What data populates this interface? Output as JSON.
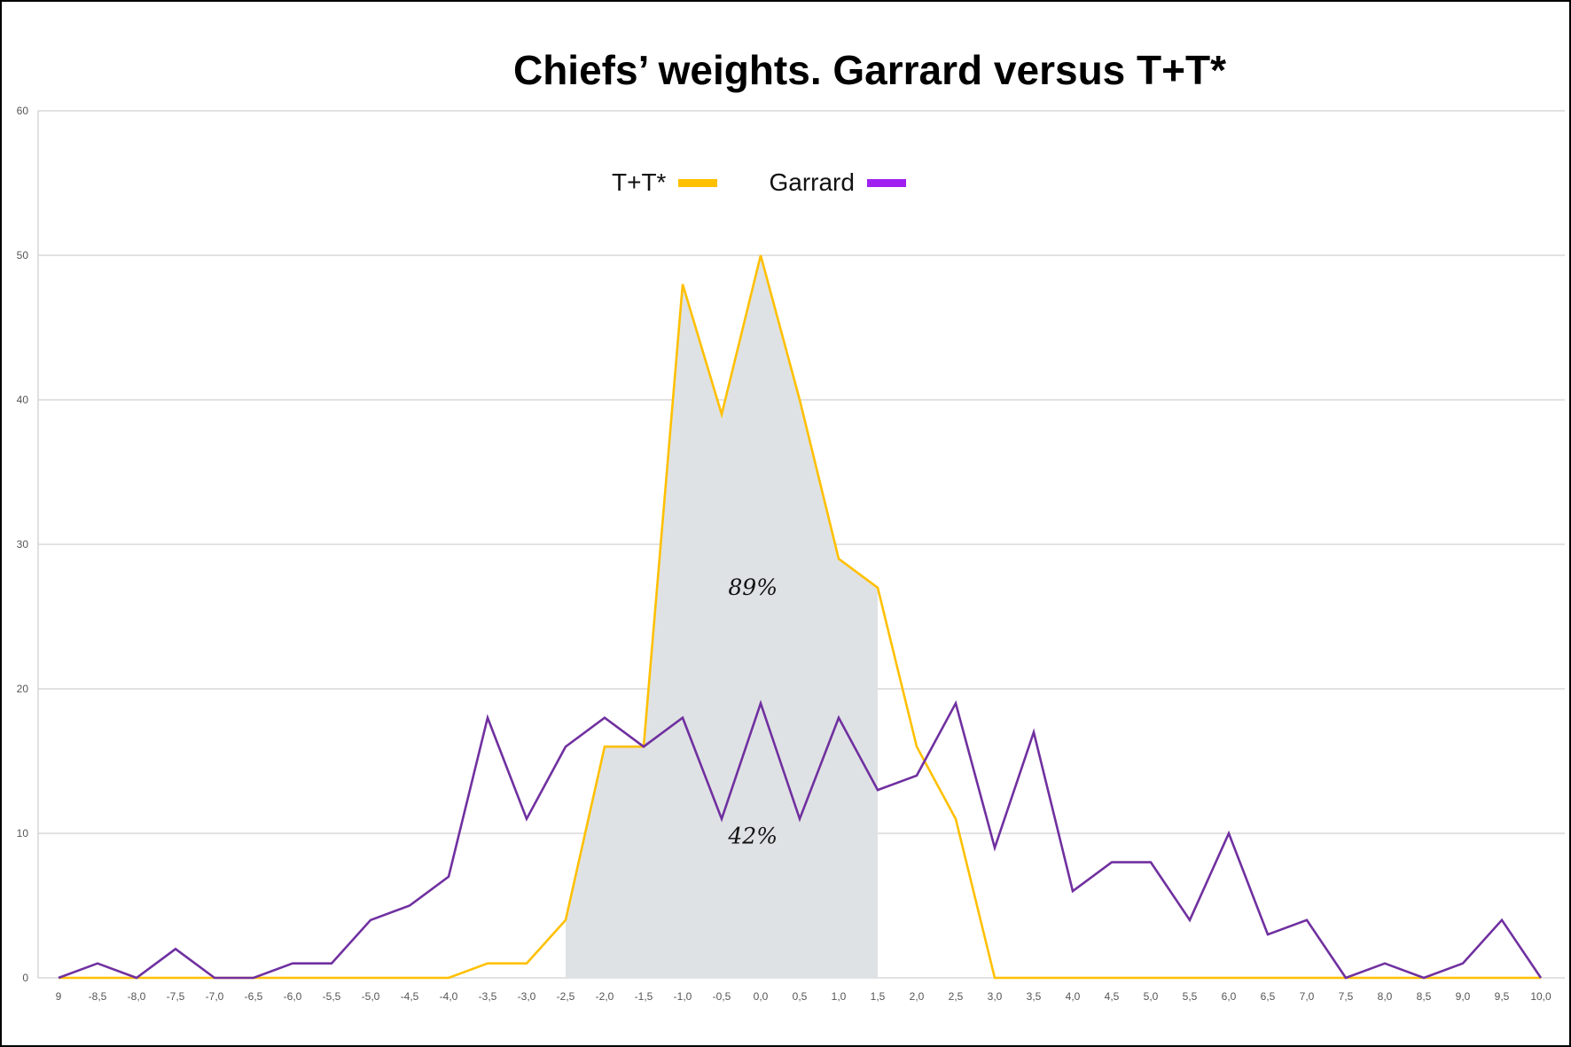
{
  "chart_data": {
    "type": "line",
    "title": "Chiefs’ weights. Garrard versus T+T*",
    "xlabel": "",
    "ylabel": "",
    "ylim": [
      0,
      60
    ],
    "yticks": [
      "0",
      "10",
      "20",
      "30",
      "40",
      "50",
      "60"
    ],
    "categories": [
      "9",
      "-8,5",
      "-8,0",
      "-7,5",
      "-7,0",
      "-6,5",
      "-6,0",
      "-5,5",
      "-5,0",
      "-4,5",
      "-4,0",
      "-3,5",
      "-3,0",
      "-2,5",
      "-2,0",
      "-1,5",
      "-1,0",
      "-0,5",
      "0,0",
      "0,5",
      "1,0",
      "1,5",
      "2,0",
      "2,5",
      "3,0",
      "3,5",
      "4,0",
      "4,5",
      "5,0",
      "5,5",
      "6,0",
      "6,5",
      "7,0",
      "7,5",
      "8,0",
      "8,5",
      "9,0",
      "9,5",
      "10,0"
    ],
    "grid": true,
    "legend_position": "top-center",
    "series": [
      {
        "name": "T+T*",
        "color": "#FFC000",
        "values": [
          0,
          0,
          0,
          0,
          0,
          0,
          0,
          0,
          0,
          0,
          0,
          1,
          1,
          4,
          16,
          16,
          48,
          39,
          50,
          40,
          29,
          27,
          16,
          11,
          0,
          0,
          0,
          0,
          0,
          0,
          0,
          0,
          0,
          0,
          0,
          0,
          0,
          0,
          0
        ]
      },
      {
        "name": "Garrard",
        "color": "#7030A0",
        "values": [
          0,
          1,
          0,
          2,
          0,
          0,
          1,
          1,
          4,
          5,
          7,
          18,
          11,
          16,
          18,
          16,
          18,
          11,
          19,
          11,
          18,
          13,
          14,
          19,
          9,
          17,
          6,
          8,
          8,
          4,
          10,
          3,
          4,
          0,
          1,
          0,
          1,
          4,
          0
        ]
      }
    ],
    "shaded_region": {
      "from_index": 13,
      "to_index": 21,
      "color": "#DFE2E4"
    },
    "annotations": [
      {
        "text": "89%",
        "at_index": 17.8,
        "y": 26.5
      },
      {
        "text": "42%",
        "at_index": 17.8,
        "y": 9.3
      }
    ]
  },
  "legend": {
    "items": [
      {
        "label": "T+T*",
        "color": "#FFC000"
      },
      {
        "label": "Garrard",
        "color": "#A020F0"
      }
    ]
  }
}
